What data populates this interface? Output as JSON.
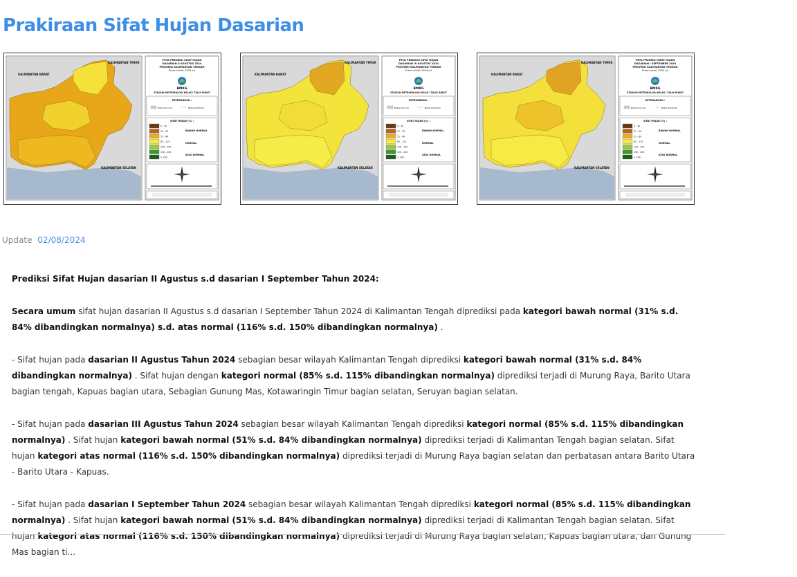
{
  "page": {
    "title": "Prakiraan Sifat Hujan Dasarian"
  },
  "maps": [
    {
      "header": [
        "PETA PREDIKSI SIFAT HUJAN",
        "DASARIAN II AGUSTUS 2024",
        "PROVINSI KALIMANTAN TENGAH",
        "Prem.Inisial: 2024 Jul"
      ],
      "region_labels": {
        "west": "KALIMANTAN BARAT",
        "east": "KALIMANTAN TIMUR",
        "south": "KALIMANTAN SELATAN"
      },
      "fill_scheme": [
        "#e8a619",
        "#eeb81f",
        "#f4e23a",
        "#f1d12b"
      ]
    },
    {
      "header": [
        "PETA PREDIKSI SIFAT HUJAN",
        "DASARIAN III AGUSTUS 2024",
        "PROVINSI KALIMANTAN TENGAH",
        "Prem.Inisial: 2024 Jul"
      ],
      "region_labels": {
        "west": "KALIMANTAN BARAT",
        "east": "KALIMANTAN TIMUR",
        "south": "KALIMANTAN SELATAN"
      },
      "fill_scheme": [
        "#f3e43b",
        "#f6ec47",
        "#e3a822",
        "#f2dd38"
      ]
    },
    {
      "header": [
        "PETA PREDIKSI SIFAT HUJAN",
        "DASARIAN I SEPTEMBER 2024",
        "PROVINSI KALIMANTAN TENGAH",
        "Prem.Inisial: 2024 Jul"
      ],
      "region_labels": {
        "west": "KALIMANTAN BARAT",
        "east": "KALIMANTAN TIMUR",
        "south": "KALIMANTAN SELATAN"
      },
      "fill_scheme": [
        "#f3e03a",
        "#f6ea45",
        "#e1a422",
        "#eec22a"
      ]
    }
  ],
  "map_legend": {
    "org_label": "BMKG",
    "station": "STASIUN METEOROLOGI KELAS I TJILIK RIWUT",
    "keterangan_title": "KETERANGAN :",
    "keterangan_items": [
      "Batas Provinsi",
      "Batas Kab/Kota"
    ],
    "sifat_title": "SIFAT HUJAN (%) :",
    "classes": [
      {
        "range": "0 - 30",
        "color": "#6b3a12"
      },
      {
        "range": "31 - 50",
        "color": "#b8651c"
      },
      {
        "range": "51 - 84",
        "color": "#e9b023"
      },
      {
        "range": "85 - 115",
        "color": "#f5ec3e"
      },
      {
        "range": "116 - 150",
        "color": "#a3c63c"
      },
      {
        "range": "150 - 200",
        "color": "#3f9a2c"
      },
      {
        "range": "> 200",
        "color": "#1c5e1a"
      }
    ],
    "category_labels": [
      "BAWAH NORMAL",
      "NORMAL",
      "ATAS NORMAL"
    ]
  },
  "update": {
    "label": "Update",
    "date": "02/08/2024"
  },
  "content": {
    "heading": "Prediksi Sifat Hujan dasarian II Agustus s.d dasarian I September Tahun 2024:",
    "p1": {
      "b1": "Secara umum",
      "t1": " sifat hujan dasarian II Agustus s.d dasarian I September Tahun 2024 di Kalimantan Tengah diprediksi pada ",
      "b2": "kategori bawah normal (31% s.d. 84% dibandingkan normalnya) s.d. atas normal (116% s.d. 150% dibandingkan normalnya)",
      "t2": " ."
    },
    "p2": {
      "t1": "- Sifat hujan pada ",
      "b1": "dasarian II Agustus Tahun 2024",
      "t2": " sebagian besar wilayah Kalimantan Tengah diprediksi ",
      "b2": "kategori bawah normal (31% s.d. 84% dibandingkan normalnya)",
      "t3": " .  Sifat hujan dengan ",
      "b3": "kategori normal (85% s.d. 115% dibandingkan normalnya)",
      "t4": "  diprediksi terjadi di Murung Raya, Barito Utara bagian tengah, Kapuas bagian utara, Sebagian Gunung Mas, Kotawaringin Timur bagian selatan, Seruyan bagian selatan."
    },
    "p3": {
      "t1": "- Sifat hujan  pada ",
      "b1": "dasarian III Agustus Tahun 2024",
      "t2": " sebagian besar wilayah Kalimantan Tengah diprediksi ",
      "b2": "kategori normal (85% s.d. 115% dibandingkan normalnya)",
      "t3": " . Sifat hujan ",
      "b3": "kategori bawah normal (51% s.d. 84% dibandingkan normalnya)",
      "t4": "  diprediksi terjadi di Kalimantan Tengah bagian selatan. Sifat hujan ",
      "b4": "kategori atas normal (116% s.d. 150% dibandingkan normalnya)",
      "t5": "  diprediksi terjadi di Murung Raya bagian selatan dan perbatasan antara Barito Utara - Barito Utara - Kapuas."
    },
    "p4": {
      "t1": "- Sifat hujan  pada ",
      "b1": "dasarian I September Tahun 2024",
      "t2": " sebagian besar wilayah Kalimantan Tengah diprediksi ",
      "b2": "kategori normal (85% s.d. 115% dibandingkan normalnya)",
      "t3": " . Sifat hujan ",
      "b3": "kategori bawah normal (51% s.d. 84% dibandingkan normalnya)",
      "t4": "  diprediksi terjadi di Kalimantan Tengah bagian selatan. Sifat hujan ",
      "b4": "kategori atas normal (116% s.d. 150% dibandingkan normalnya)",
      "t5": "  diprediksi terjadi di Murung Raya bagian selatan, Kapuas bagian utara, dan Gunung Mas bagian ti..."
    }
  }
}
